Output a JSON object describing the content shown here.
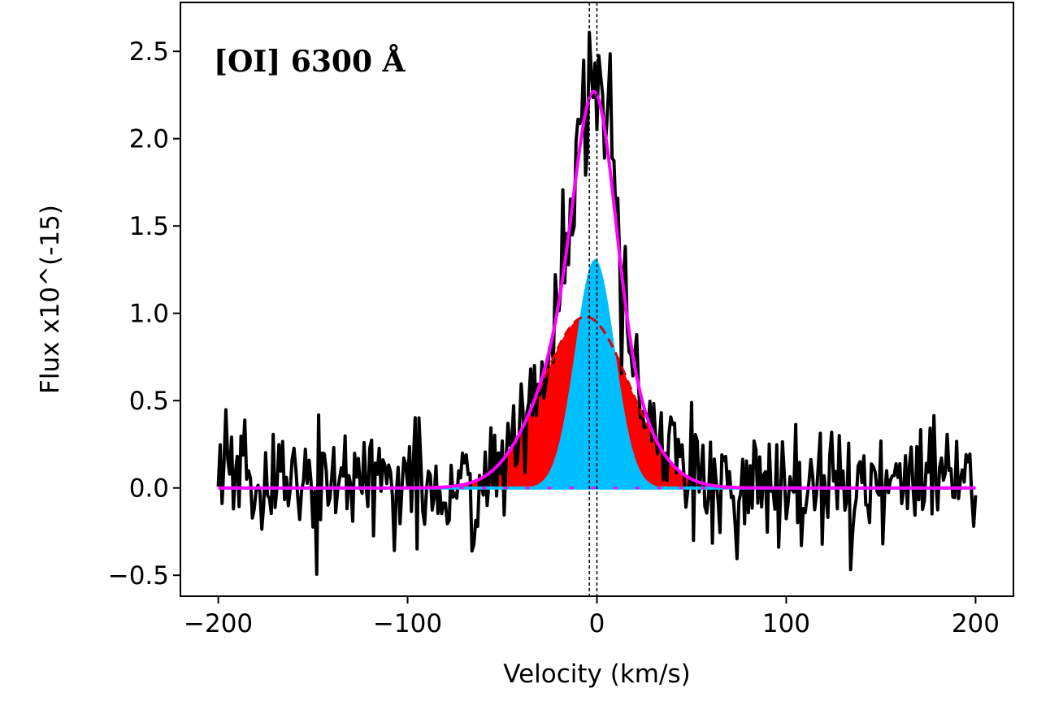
{
  "chart_data": {
    "type": "line",
    "title": "",
    "annotation": "[OI] 6300 Å",
    "xlabel": "Velocity (km/s)",
    "ylabel": "Flux x10^(-15)",
    "xlim": [
      -220,
      220
    ],
    "ylim": [
      -0.62,
      2.78
    ],
    "xticks": [
      -200,
      -100,
      0,
      100,
      200
    ],
    "xtick_labels": [
      "−200",
      "−100",
      "0",
      "100",
      "200"
    ],
    "yticks": [
      -0.5,
      0.0,
      0.5,
      1.0,
      1.5,
      2.0,
      2.5
    ],
    "ytick_labels": [
      "−0.5",
      "0.0",
      "0.5",
      "1.0",
      "1.5",
      "2.0",
      "2.5"
    ],
    "grid": false,
    "vlines": [
      -4,
      0
    ],
    "noise": {
      "seed": 7,
      "sigma": 0.17,
      "x_min": -200,
      "x_max": 200,
      "step": 1.0
    },
    "series": [
      {
        "name": "observed spectrum",
        "kind": "noisy-line",
        "color": "#000000"
      },
      {
        "name": "broad component",
        "kind": "gaussian-fill",
        "amplitude": 0.98,
        "center": -6,
        "sigma": 23,
        "color": "#ff0000"
      },
      {
        "name": "narrow component",
        "kind": "gaussian-fill",
        "amplitude": 1.31,
        "center": -1,
        "sigma": 10.5,
        "color": "#00bfff"
      },
      {
        "name": "total fit",
        "kind": "model-line",
        "color": "#ff00ff"
      },
      {
        "name": "zero level",
        "kind": "baseline",
        "value": 0.0,
        "color": "#00bfff"
      }
    ]
  }
}
